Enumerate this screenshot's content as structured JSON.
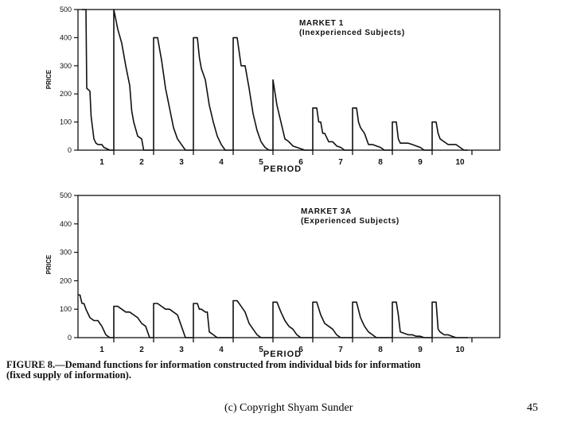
{
  "chart_data": [
    {
      "type": "line",
      "panel_title": [
        "MARKET 1",
        "(Inexperienced Subjects)"
      ],
      "xlabel": "PERIOD",
      "ylabel": "PRICE",
      "ylim": [
        0,
        500
      ],
      "yticks": [
        "0",
        "100",
        "200",
        "300",
        "400",
        "500"
      ],
      "period_labels": [
        "1",
        "2",
        "3",
        "4",
        "5",
        "6",
        "7",
        "8",
        "9",
        "10"
      ],
      "x_range": [
        0.4,
        11.0
      ],
      "series": [
        {
          "period": "1",
          "x": [
            0.5,
            0.6,
            0.62,
            0.7,
            0.73,
            0.8,
            0.85,
            0.9,
            1.0,
            1.05,
            1.2,
            1.3
          ],
          "y": [
            500,
            500,
            220,
            210,
            120,
            40,
            25,
            20,
            20,
            10,
            0,
            0
          ]
        },
        {
          "period": "2",
          "x": [
            1.3,
            1.3,
            1.4,
            1.5,
            1.6,
            1.7,
            1.75,
            1.8,
            1.9,
            2.0,
            2.05,
            2.2,
            2.3
          ],
          "y": [
            0,
            500,
            430,
            380,
            300,
            230,
            140,
            100,
            50,
            40,
            0,
            0,
            0
          ]
        },
        {
          "period": "3",
          "x": [
            2.3,
            2.3,
            2.4,
            2.5,
            2.55,
            2.6,
            2.7,
            2.8,
            2.9,
            3.0,
            3.1,
            3.2,
            3.3
          ],
          "y": [
            0,
            400,
            400,
            320,
            270,
            220,
            150,
            80,
            40,
            20,
            0,
            0,
            0
          ]
        },
        {
          "period": "4",
          "x": [
            3.3,
            3.3,
            3.4,
            3.45,
            3.5,
            3.6,
            3.7,
            3.8,
            3.9,
            4.0,
            4.1,
            4.2,
            4.3
          ],
          "y": [
            0,
            400,
            400,
            330,
            290,
            250,
            160,
            100,
            50,
            20,
            0,
            0,
            0
          ]
        },
        {
          "period": "5",
          "x": [
            4.3,
            4.3,
            4.4,
            4.5,
            4.6,
            4.7,
            4.8,
            4.9,
            5.0,
            5.1,
            5.2,
            5.3
          ],
          "y": [
            0,
            400,
            400,
            300,
            300,
            220,
            130,
            70,
            30,
            10,
            0,
            0
          ]
        },
        {
          "period": "6",
          "x": [
            5.3,
            5.3,
            5.4,
            5.5,
            5.6,
            5.7,
            5.8,
            5.9,
            6.0,
            6.1,
            6.2,
            6.3
          ],
          "y": [
            0,
            250,
            160,
            100,
            40,
            30,
            15,
            10,
            5,
            0,
            0,
            0
          ]
        },
        {
          "period": "7",
          "x": [
            6.3,
            6.3,
            6.4,
            6.45,
            6.5,
            6.55,
            6.6,
            6.7,
            6.8,
            6.9,
            7.0,
            7.1,
            7.2,
            7.3
          ],
          "y": [
            0,
            150,
            150,
            100,
            100,
            60,
            60,
            30,
            30,
            15,
            10,
            0,
            0,
            0
          ]
        },
        {
          "period": "8",
          "x": [
            7.3,
            7.3,
            7.4,
            7.45,
            7.5,
            7.6,
            7.7,
            7.8,
            7.9,
            8.0,
            8.1,
            8.2,
            8.3
          ],
          "y": [
            0,
            150,
            150,
            100,
            80,
            60,
            20,
            20,
            15,
            10,
            0,
            0,
            0
          ]
        },
        {
          "period": "9",
          "x": [
            8.3,
            8.3,
            8.4,
            8.45,
            8.5,
            8.6,
            8.7,
            8.8,
            8.9,
            9.0,
            9.1,
            9.2,
            9.3
          ],
          "y": [
            0,
            100,
            100,
            40,
            25,
            25,
            25,
            20,
            15,
            10,
            0,
            0,
            0
          ]
        },
        {
          "period": "10",
          "x": [
            9.3,
            9.3,
            9.4,
            9.45,
            9.5,
            9.6,
            9.7,
            9.8,
            9.9,
            10.0,
            10.1,
            10.2
          ],
          "y": [
            0,
            100,
            100,
            60,
            40,
            30,
            20,
            20,
            20,
            10,
            0,
            0
          ]
        }
      ]
    },
    {
      "type": "line",
      "panel_title": [
        "MARKET 3A",
        "(Experienced Subjects)"
      ],
      "xlabel": "PERIOD",
      "ylabel": "PRICE",
      "ylim": [
        0,
        500
      ],
      "yticks": [
        "0",
        "100",
        "200",
        "300",
        "400",
        "500"
      ],
      "period_labels": [
        "1",
        "2",
        "3",
        "4",
        "5",
        "6",
        "7",
        "8",
        "9",
        "10"
      ],
      "x_range": [
        0.4,
        11.0
      ],
      "series": [
        {
          "period": "1",
          "x": [
            0.4,
            0.45,
            0.5,
            0.55,
            0.6,
            0.7,
            0.8,
            0.9,
            1.0,
            1.1,
            1.2,
            1.3
          ],
          "y": [
            150,
            150,
            120,
            120,
            100,
            70,
            60,
            60,
            40,
            10,
            0,
            0
          ]
        },
        {
          "period": "2",
          "x": [
            1.3,
            1.3,
            1.4,
            1.5,
            1.6,
            1.7,
            1.8,
            1.9,
            2.0,
            2.1,
            2.2,
            2.3
          ],
          "y": [
            0,
            110,
            110,
            100,
            90,
            90,
            80,
            70,
            50,
            40,
            0,
            0
          ]
        },
        {
          "period": "3",
          "x": [
            2.3,
            2.3,
            2.4,
            2.5,
            2.6,
            2.7,
            2.8,
            2.9,
            3.0,
            3.1,
            3.2,
            3.3
          ],
          "y": [
            0,
            120,
            120,
            110,
            100,
            100,
            90,
            80,
            40,
            0,
            0,
            0
          ]
        },
        {
          "period": "4",
          "x": [
            3.3,
            3.3,
            3.4,
            3.45,
            3.5,
            3.6,
            3.65,
            3.7,
            3.8,
            3.9,
            4.0,
            4.1,
            4.2,
            4.3
          ],
          "y": [
            0,
            120,
            120,
            100,
            100,
            90,
            90,
            20,
            10,
            0,
            0,
            0,
            0,
            0
          ]
        },
        {
          "period": "5",
          "x": [
            4.3,
            4.3,
            4.4,
            4.5,
            4.6,
            4.7,
            4.8,
            4.9,
            5.0,
            5.1,
            5.2,
            5.3
          ],
          "y": [
            0,
            130,
            130,
            110,
            90,
            50,
            30,
            10,
            0,
            0,
            0,
            0
          ]
        },
        {
          "period": "6",
          "x": [
            5.3,
            5.3,
            5.4,
            5.5,
            5.6,
            5.7,
            5.8,
            5.9,
            6.0,
            6.1,
            6.2,
            6.3
          ],
          "y": [
            0,
            125,
            125,
            90,
            60,
            40,
            30,
            10,
            0,
            0,
            0,
            0
          ]
        },
        {
          "period": "7",
          "x": [
            6.3,
            6.3,
            6.4,
            6.5,
            6.6,
            6.7,
            6.8,
            6.9,
            7.0,
            7.1,
            7.2,
            7.3
          ],
          "y": [
            0,
            125,
            125,
            80,
            50,
            40,
            30,
            10,
            0,
            0,
            0,
            0
          ]
        },
        {
          "period": "8",
          "x": [
            7.3,
            7.3,
            7.4,
            7.5,
            7.6,
            7.7,
            7.8,
            7.9,
            8.0,
            8.1,
            8.2,
            8.3
          ],
          "y": [
            0,
            125,
            125,
            70,
            40,
            20,
            10,
            0,
            0,
            0,
            0,
            0
          ]
        },
        {
          "period": "9",
          "x": [
            8.3,
            8.3,
            8.4,
            8.45,
            8.5,
            8.6,
            8.7,
            8.8,
            8.9,
            9.0,
            9.1,
            9.2,
            9.3
          ],
          "y": [
            0,
            125,
            125,
            80,
            20,
            15,
            10,
            10,
            5,
            5,
            0,
            0,
            0
          ]
        },
        {
          "period": "10",
          "x": [
            9.3,
            9.3,
            9.4,
            9.45,
            9.5,
            9.6,
            9.7,
            9.8,
            9.9,
            10.0,
            10.1,
            10.2
          ],
          "y": [
            0,
            125,
            125,
            30,
            20,
            10,
            10,
            5,
            0,
            0,
            0,
            0
          ]
        }
      ]
    }
  ],
  "caption": {
    "line1": "FIGURE 8.—Demand functions for information constructed from individual bids for information",
    "line2": "(fixed supply of information)."
  },
  "footer": {
    "copyright": "(c) Copyright Shyam Sunder",
    "page_number": "45"
  },
  "colors": {
    "ink": "#111111",
    "background": "#ffffff"
  }
}
